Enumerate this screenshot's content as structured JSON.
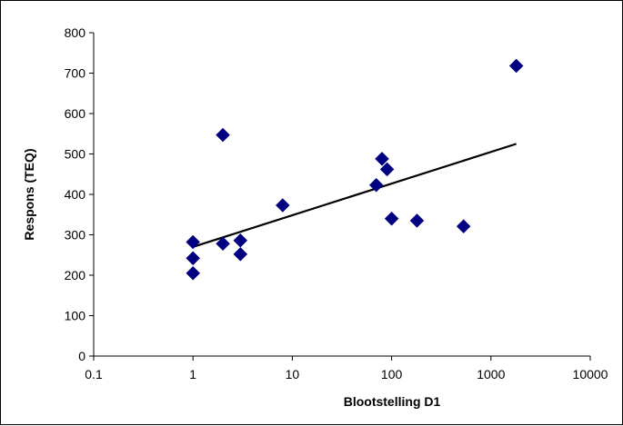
{
  "chart_data": {
    "type": "scatter",
    "title": "",
    "xlabel": "Blootstelling  D1",
    "ylabel": "Respons (TEQ)",
    "xscale": "log",
    "xlim": [
      0.1,
      10000
    ],
    "ylim": [
      0,
      800
    ],
    "xticks": [
      "0.1",
      "1",
      "10",
      "100",
      "1000",
      "10000"
    ],
    "yticks": [
      "0",
      "100",
      "200",
      "300",
      "400",
      "500",
      "600",
      "700",
      "800"
    ],
    "grid": false,
    "legend": "none",
    "marker": "diamond",
    "marker_color": "#000080",
    "points": [
      {
        "x": 1,
        "y": 205
      },
      {
        "x": 1,
        "y": 242
      },
      {
        "x": 1,
        "y": 282
      },
      {
        "x": 2,
        "y": 278
      },
      {
        "x": 2,
        "y": 547
      },
      {
        "x": 3,
        "y": 252
      },
      {
        "x": 3,
        "y": 286
      },
      {
        "x": 8,
        "y": 373
      },
      {
        "x": 70,
        "y": 423
      },
      {
        "x": 80,
        "y": 488
      },
      {
        "x": 90,
        "y": 462
      },
      {
        "x": 100,
        "y": 340
      },
      {
        "x": 180,
        "y": 335
      },
      {
        "x": 530,
        "y": 321
      },
      {
        "x": 1800,
        "y": 718
      }
    ],
    "trendline": {
      "x": [
        1,
        1800
      ],
      "y": [
        270,
        525
      ],
      "color": "#000000"
    }
  }
}
